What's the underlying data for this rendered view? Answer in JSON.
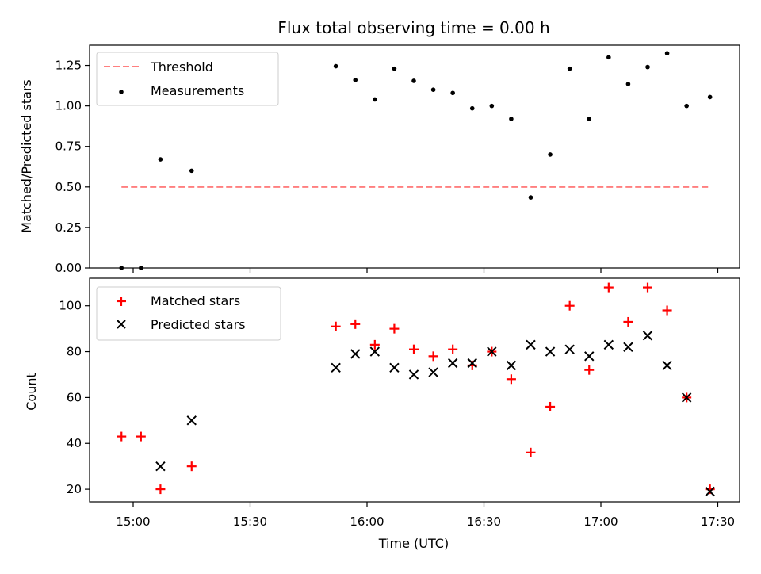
{
  "chart_data": {
    "title": "Flux total observing time = 0.00 h",
    "xlabel": "Time (UTC)",
    "x_ticks": [
      "15:00",
      "15:30",
      "16:00",
      "16:30",
      "17:00",
      "17:30"
    ],
    "panels": [
      {
        "type": "scatter",
        "ylabel": "Matched/Predicted stars",
        "ylim": [
          0,
          1.375
        ],
        "y_ticks": [
          "0.00",
          "0.25",
          "0.50",
          "0.75",
          "1.00",
          "1.25"
        ],
        "legend": {
          "placement": "top-left",
          "entries": [
            "Threshold",
            "Measurements"
          ]
        },
        "threshold": {
          "name": "Threshold",
          "value": 0.5,
          "x_start": "14:57",
          "x_end": "17:28",
          "color": "#ff7f7f",
          "style": "dashed"
        },
        "series": [
          {
            "name": "Measurements",
            "color": "#000000",
            "marker": "dot",
            "points": [
              [
                "14:57",
                0.0
              ],
              [
                "15:02",
                0.0
              ],
              [
                "15:07",
                0.67
              ],
              [
                "15:15",
                0.6
              ],
              [
                "15:52",
                1.245
              ],
              [
                "15:57",
                1.16
              ],
              [
                "16:02",
                1.04
              ],
              [
                "16:07",
                1.23
              ],
              [
                "16:12",
                1.155
              ],
              [
                "16:17",
                1.1
              ],
              [
                "16:22",
                1.08
              ],
              [
                "16:27",
                0.985
              ],
              [
                "16:32",
                1.0
              ],
              [
                "16:37",
                0.92
              ],
              [
                "16:42",
                0.435
              ],
              [
                "16:47",
                0.7
              ],
              [
                "16:52",
                1.23
              ],
              [
                "16:57",
                0.92
              ],
              [
                "17:02",
                1.3
              ],
              [
                "17:07",
                1.135
              ],
              [
                "17:12",
                1.24
              ],
              [
                "17:17",
                1.325
              ],
              [
                "17:22",
                1.0
              ],
              [
                "17:28",
                1.055
              ]
            ]
          }
        ]
      },
      {
        "type": "scatter",
        "ylabel": "Count",
        "ylim": [
          14.5,
          112
        ],
        "y_ticks": [
          "20",
          "40",
          "60",
          "80",
          "100"
        ],
        "legend": {
          "placement": "top-left",
          "entries": [
            "Matched stars",
            "Predicted stars"
          ]
        },
        "series": [
          {
            "name": "Matched stars",
            "color": "#ff0000",
            "marker": "plus",
            "points": [
              [
                "14:57",
                43
              ],
              [
                "15:02",
                43
              ],
              [
                "15:07",
                20
              ],
              [
                "15:15",
                30
              ],
              [
                "15:52",
                91
              ],
              [
                "15:57",
                92
              ],
              [
                "16:02",
                83
              ],
              [
                "16:07",
                90
              ],
              [
                "16:12",
                81
              ],
              [
                "16:17",
                78
              ],
              [
                "16:22",
                81
              ],
              [
                "16:27",
                74
              ],
              [
                "16:32",
                80
              ],
              [
                "16:37",
                68
              ],
              [
                "16:42",
                36
              ],
              [
                "16:47",
                56
              ],
              [
                "16:52",
                100
              ],
              [
                "16:57",
                72
              ],
              [
                "17:02",
                108
              ],
              [
                "17:07",
                93
              ],
              [
                "17:12",
                108
              ],
              [
                "17:17",
                98
              ],
              [
                "17:22",
                60
              ],
              [
                "17:28",
                20
              ]
            ]
          },
          {
            "name": "Predicted stars",
            "color": "#000000",
            "marker": "x",
            "points": [
              [
                "15:07",
                30
              ],
              [
                "15:15",
                50
              ],
              [
                "15:52",
                73
              ],
              [
                "15:57",
                79
              ],
              [
                "16:02",
                80
              ],
              [
                "16:07",
                73
              ],
              [
                "16:12",
                70
              ],
              [
                "16:17",
                71
              ],
              [
                "16:22",
                75
              ],
              [
                "16:27",
                75
              ],
              [
                "16:32",
                80
              ],
              [
                "16:37",
                74
              ],
              [
                "16:42",
                83
              ],
              [
                "16:47",
                80
              ],
              [
                "16:52",
                81
              ],
              [
                "16:57",
                78
              ],
              [
                "17:02",
                83
              ],
              [
                "17:07",
                82
              ],
              [
                "17:12",
                87
              ],
              [
                "17:17",
                74
              ],
              [
                "17:22",
                60
              ],
              [
                "17:28",
                19
              ]
            ]
          }
        ]
      }
    ]
  }
}
